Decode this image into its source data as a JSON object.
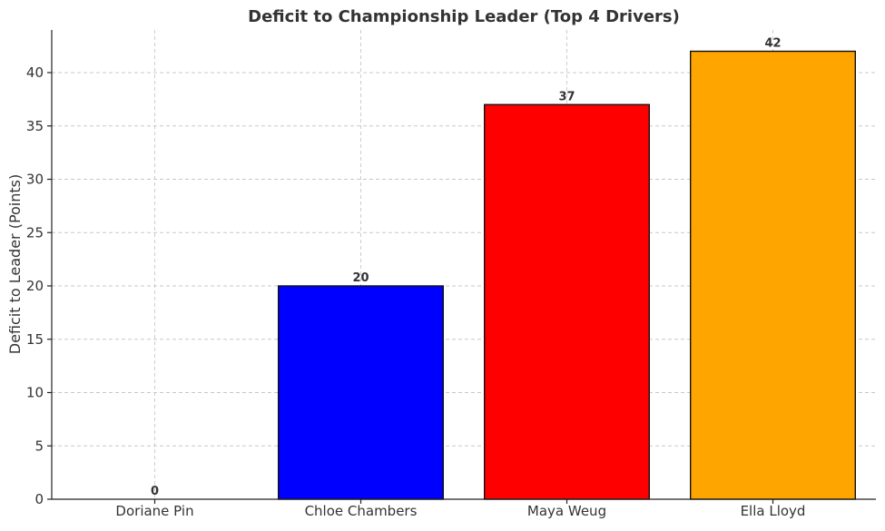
{
  "chart_data": {
    "type": "bar",
    "title": "Deficit to Championship Leader (Top 4 Drivers)",
    "xlabel": "",
    "ylabel": "Deficit to Leader (Points)",
    "categories": [
      "Doriane Pin",
      "Chloe Chambers",
      "Maya Weug",
      "Ella Lloyd"
    ],
    "values": [
      0,
      20,
      37,
      42
    ],
    "colors": [
      "#1f77b4",
      "#0000ff",
      "#ff0000",
      "#ffa500"
    ],
    "ylim": [
      0,
      44
    ],
    "yticks": [
      0,
      5,
      10,
      15,
      20,
      25,
      30,
      35,
      40
    ],
    "grid": true,
    "data_labels": [
      "0",
      "20",
      "37",
      "42"
    ]
  }
}
